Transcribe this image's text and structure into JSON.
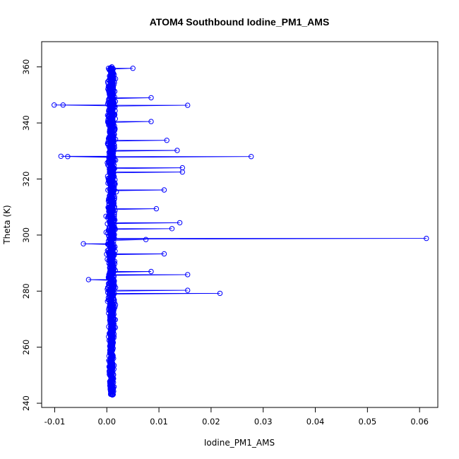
{
  "chart_data": {
    "type": "scatter",
    "title": "ATOM4 Southbound Iodine_PM1_AMS",
    "xlabel": "Iodine_PM1_AMS",
    "ylabel": "Theta (K)",
    "xlim": [
      -0.0125,
      0.0635
    ],
    "ylim": [
      238.5,
      369
    ],
    "x_ticks": [
      -0.01,
      0.0,
      0.01,
      0.02,
      0.03,
      0.04,
      0.05,
      0.06
    ],
    "x_tick_labels": [
      "-0.01",
      "0.00",
      "0.01",
      "0.02",
      "0.03",
      "0.04",
      "0.05",
      "0.06"
    ],
    "y_ticks": [
      240,
      260,
      280,
      300,
      320,
      340,
      360
    ],
    "y_tick_labels": [
      "240",
      "260",
      "280",
      "300",
      "320",
      "340",
      "360"
    ],
    "grid": false,
    "marker": "open-circle",
    "connected": true,
    "series": [
      {
        "color": "#0000ff",
        "outliers": [
          {
            "x": -0.0101,
            "y": 346.4
          },
          {
            "x": -0.0084,
            "y": 346.4
          },
          {
            "x": 0.0085,
            "y": 349.0
          },
          {
            "x": 0.0155,
            "y": 346.3
          },
          {
            "x": 0.0085,
            "y": 340.5
          },
          {
            "x": -0.0088,
            "y": 328.1
          },
          {
            "x": -0.0075,
            "y": 328.0
          },
          {
            "x": 0.0115,
            "y": 333.8
          },
          {
            "x": 0.0135,
            "y": 330.2
          },
          {
            "x": 0.0277,
            "y": 328.0
          },
          {
            "x": 0.0145,
            "y": 324.0
          },
          {
            "x": 0.0145,
            "y": 322.5
          },
          {
            "x": 0.011,
            "y": 316.1
          },
          {
            "x": 0.0095,
            "y": 309.4
          },
          {
            "x": 0.014,
            "y": 304.4
          },
          {
            "x": 0.0125,
            "y": 302.3
          },
          {
            "x": 0.0613,
            "y": 298.8
          },
          {
            "x": 0.011,
            "y": 293.3
          },
          {
            "x": 0.0155,
            "y": 285.9
          },
          {
            "x": 0.0155,
            "y": 280.3
          },
          {
            "x": 0.0217,
            "y": 279.2
          },
          {
            "x": -0.0045,
            "y": 296.9
          },
          {
            "x": -0.0035,
            "y": 284.1
          },
          {
            "x": 0.005,
            "y": 359.5
          },
          {
            "x": 0.0075,
            "y": 298.4
          },
          {
            "x": 0.0085,
            "y": 287.0
          }
        ]
      }
    ]
  }
}
